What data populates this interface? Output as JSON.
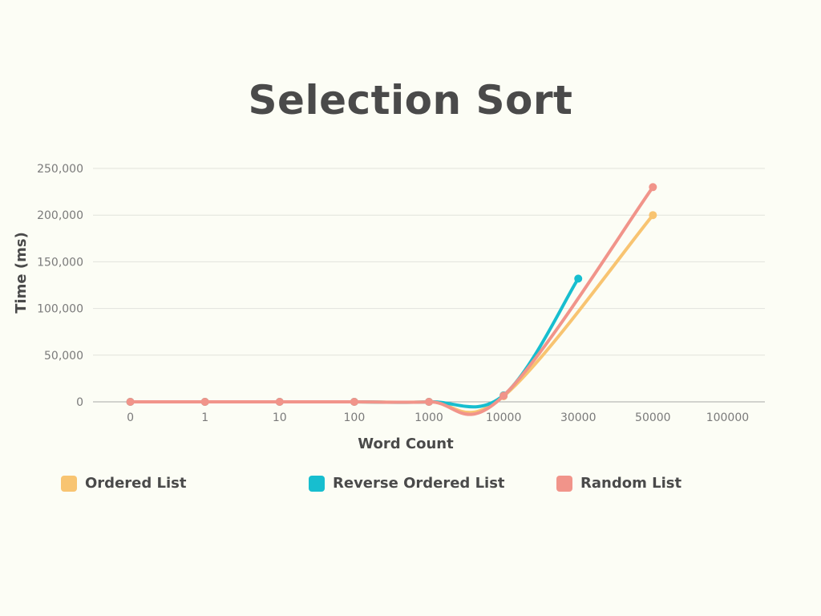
{
  "chart_data": {
    "type": "line",
    "title": "Selection Sort",
    "xlabel": "Word Count",
    "ylabel": "Time (ms)",
    "categories": [
      "0",
      "1",
      "10",
      "100",
      "1000",
      "10000",
      "30000",
      "50000",
      "100000"
    ],
    "ylim": [
      0,
      250000
    ],
    "y_ticks": [
      0,
      50000,
      100000,
      150000,
      200000,
      250000
    ],
    "y_tick_labels": [
      "0",
      "50,000",
      "100,000",
      "150,000",
      "200,000",
      "250,000"
    ],
    "grid": true,
    "legend_position": "bottom",
    "series": [
      {
        "name": "Ordered List",
        "color": "#f8c471",
        "values": [
          0,
          0,
          0,
          0,
          0,
          6000,
          null,
          200000,
          null
        ]
      },
      {
        "name": "Reverse Ordered List",
        "color": "#17becf",
        "values": [
          0,
          0,
          0,
          0,
          0,
          7000,
          132000,
          null,
          null
        ]
      },
      {
        "name": "Random List",
        "color": "#f1948a",
        "values": [
          0,
          0,
          0,
          0,
          0,
          6500,
          null,
          230000,
          null
        ]
      }
    ]
  }
}
